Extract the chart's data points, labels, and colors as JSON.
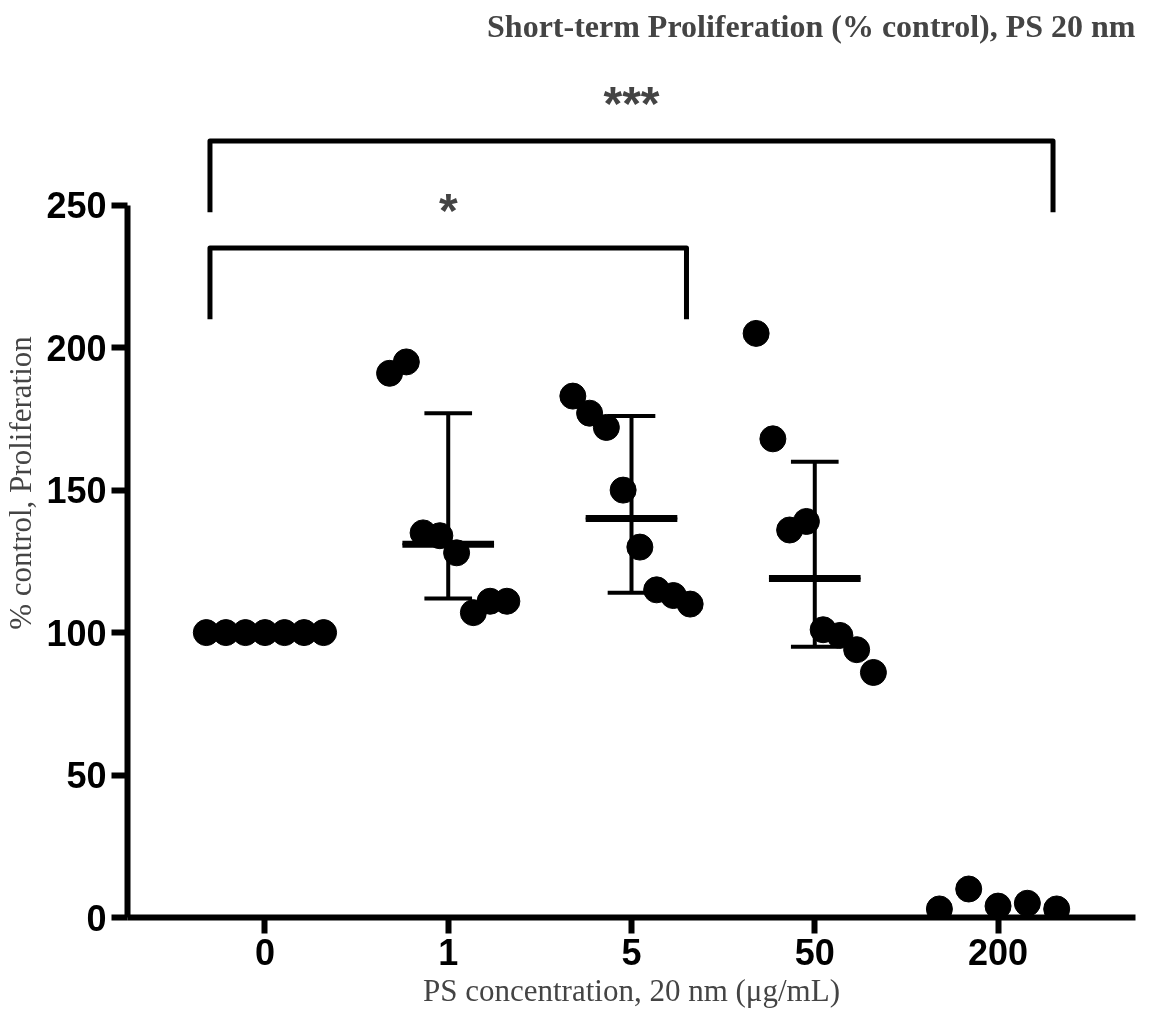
{
  "chart_data": {
    "type": "scatter",
    "title": "Short-term Proliferation (% control), PS 20 nm",
    "xlabel": "PS concentration, 20 nm (μg/mL)",
    "ylabel": "% control, Proliferation",
    "categories": [
      "0",
      "1",
      "5",
      "50",
      "200"
    ],
    "marker": "circle",
    "series": [
      {
        "color": "#000000",
        "x": [
          "0",
          "0",
          "0",
          "0",
          "0",
          "0",
          "0",
          "1",
          "1",
          "1",
          "1",
          "1",
          "1",
          "1",
          "1",
          "5",
          "5",
          "5",
          "5",
          "5",
          "5",
          "5",
          "5",
          "50",
          "50",
          "50",
          "50",
          "50",
          "50",
          "50",
          "50",
          "200",
          "200",
          "200",
          "200",
          "200"
        ],
        "values": [
          100,
          100,
          100,
          100,
          100,
          100,
          100,
          191,
          195,
          135,
          134,
          128,
          107,
          111,
          111,
          183,
          177,
          172,
          150,
          130,
          115,
          113,
          110,
          205,
          168,
          136,
          139,
          101,
          99,
          94,
          86,
          3,
          10,
          4,
          5,
          3
        ]
      },
      {
        "type": "box",
        "color": "#000000",
        "boxes": [
          null,
          {
            "low": 112,
            "q1": 131,
            "median": 131,
            "q3": 131,
            "high": 177
          },
          {
            "low": 114,
            "q1": 140,
            "median": 140,
            "q3": 140,
            "high": 176
          },
          {
            "low": 95,
            "q1": 119,
            "median": 119,
            "q3": 119,
            "high": 160
          },
          null
        ]
      }
    ],
    "ylim": [
      0,
      250
    ],
    "yticks": [
      0,
      50,
      100,
      150,
      200,
      250
    ],
    "annotations": [
      "*",
      "***"
    ]
  }
}
